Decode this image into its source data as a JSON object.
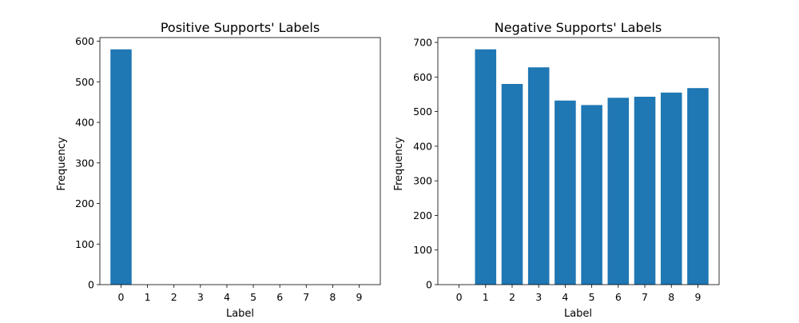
{
  "chart_data": [
    {
      "type": "bar",
      "title": "Positive Supports' Labels",
      "xlabel": "Label",
      "ylabel": "Frequency",
      "categories": [
        "0",
        "1",
        "2",
        "3",
        "4",
        "5",
        "6",
        "7",
        "8",
        "9"
      ],
      "values": [
        580,
        0,
        0,
        0,
        0,
        0,
        0,
        0,
        0,
        0
      ],
      "ylim": [
        0,
        609
      ],
      "yticks": [
        "0",
        "100",
        "200",
        "300",
        "400",
        "500",
        "600"
      ],
      "grid": false,
      "color": "#1f77b4"
    },
    {
      "type": "bar",
      "title": "Negative Supports' Labels",
      "xlabel": "Label",
      "ylabel": "Frequency",
      "categories": [
        "0",
        "1",
        "2",
        "3",
        "4",
        "5",
        "6",
        "7",
        "8",
        "9"
      ],
      "values": [
        0,
        680,
        580,
        628,
        532,
        519,
        540,
        543,
        555,
        568
      ],
      "ylim": [
        0,
        714
      ],
      "yticks": [
        "0",
        "100",
        "200",
        "300",
        "400",
        "500",
        "600",
        "700"
      ],
      "grid": false,
      "color": "#1f77b4"
    }
  ]
}
